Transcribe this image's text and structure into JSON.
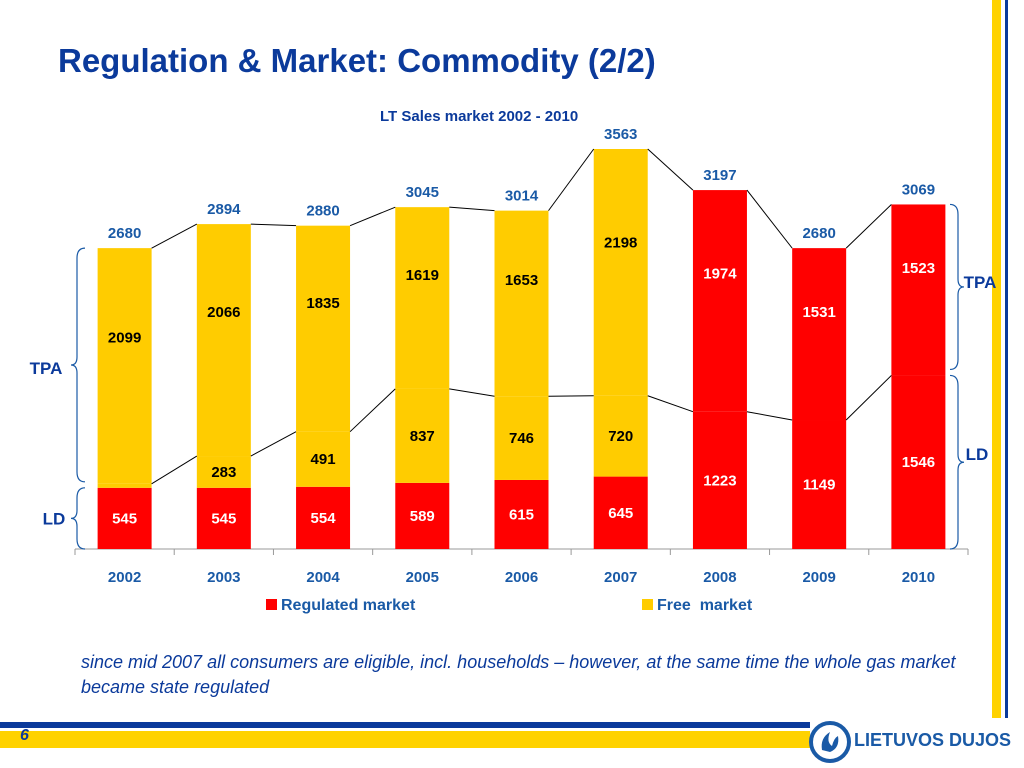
{
  "slide": {
    "title": "Regulation & Market: Commodity (2/2)",
    "note": "since mid 2007 all consumers are eligible, incl. households – however, at the same time the whole gas market became state regulated",
    "page_number": "6",
    "logo_text": "LIETUVOS DUJOS"
  },
  "colors": {
    "regulated": "#ff0000",
    "free": "#ffcc00",
    "accent": "#0b3a9b",
    "yellow": "#ffd200"
  },
  "chart_data": {
    "type": "bar",
    "title": "LT Sales market 2002 - 2010",
    "categories": [
      "2002",
      "2003",
      "2004",
      "2005",
      "2006",
      "2007",
      "2008",
      "2009",
      "2010"
    ],
    "series": [
      {
        "name": "Regulated market",
        "segment": "LD",
        "values": [
          545,
          545,
          554,
          589,
          615,
          645,
          1223,
          1149,
          1546
        ]
      },
      {
        "name": "Free  market",
        "segment": "LD",
        "values": [
          36,
          283,
          491,
          837,
          746,
          720,
          0,
          0,
          0
        ]
      },
      {
        "name": "Free  market",
        "segment": "TPA",
        "values": [
          2099,
          2066,
          1835,
          1619,
          1653,
          2198,
          0,
          0,
          0
        ]
      },
      {
        "name": "Regulated market",
        "segment": "TPA",
        "values": [
          0,
          0,
          0,
          0,
          0,
          0,
          1974,
          1531,
          1523
        ]
      }
    ],
    "totals": [
      2680,
      2894,
      2880,
      3045,
      3014,
      3563,
      3197,
      2680,
      3069
    ],
    "legend": [
      "Regulated market",
      "Free  market"
    ],
    "legend_position": "bottom",
    "brace_labels": {
      "left_top": "TPA",
      "left_bottom": "LD",
      "right_top": "TPA",
      "right_bottom": "LD"
    },
    "ylim": [
      0,
      3600
    ]
  }
}
